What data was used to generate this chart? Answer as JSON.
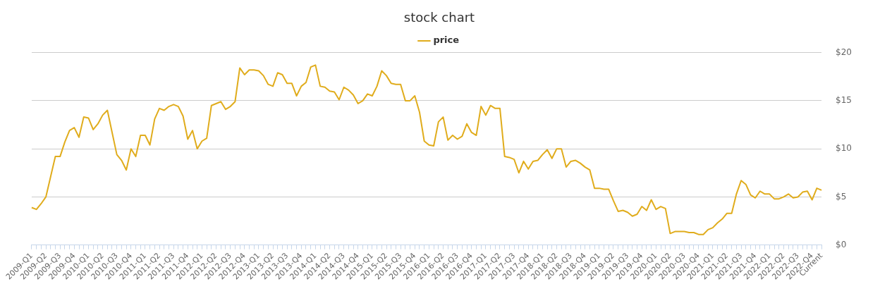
{
  "chart_data": {
    "type": "line",
    "title": "stock chart",
    "categories": [
      "2009-Q1",
      null,
      null,
      "2009-Q2",
      null,
      null,
      "2009-Q3",
      null,
      null,
      "2009-Q4",
      null,
      null,
      "2010-Q1",
      null,
      null,
      "2010-Q2",
      null,
      null,
      "2010-Q3",
      null,
      null,
      "2010-Q4",
      null,
      null,
      "2011-Q1",
      null,
      null,
      "2011-Q2",
      null,
      null,
      "2011-Q3",
      null,
      null,
      "2011-Q4",
      null,
      null,
      "2012-Q1",
      null,
      null,
      "2012-Q2",
      null,
      null,
      "2012-Q3",
      null,
      null,
      "2012-Q4",
      null,
      null,
      "2013-Q1",
      null,
      null,
      "2013-Q2",
      null,
      null,
      "2013-Q3",
      null,
      null,
      "2013-Q4",
      null,
      null,
      "2014-Q1",
      null,
      null,
      "2014-Q2",
      null,
      null,
      "2014-Q3",
      null,
      null,
      "2014-Q4",
      null,
      null,
      "2015-Q1",
      null,
      null,
      "2015-Q2",
      null,
      null,
      "2015-Q3",
      null,
      null,
      "2015-Q4",
      null,
      null,
      "2016-Q1",
      null,
      null,
      "2016-Q2",
      null,
      null,
      "2016-Q3",
      null,
      null,
      "2016-Q4",
      null,
      null,
      "2017-Q1",
      null,
      null,
      "2017-Q2",
      null,
      null,
      "2017-Q3",
      null,
      null,
      "2017-Q4",
      null,
      null,
      "2018-Q1",
      null,
      null,
      "2018-Q2",
      null,
      null,
      "2018-Q3",
      null,
      null,
      "2018-Q4",
      null,
      null,
      "2019-Q1",
      null,
      null,
      "2019-Q2",
      null,
      null,
      "2019-Q3",
      null,
      null,
      "2019-Q4",
      null,
      null,
      "2020-Q1",
      null,
      null,
      "2020-Q2",
      null,
      null,
      "2020-Q3",
      null,
      null,
      "2020-Q4",
      null,
      null,
      "2021-Q1",
      null,
      null,
      "2021-Q2",
      null,
      null,
      "2021-Q3",
      null,
      null,
      "2021-Q4",
      null,
      null,
      "2022-Q1",
      null,
      null,
      "2022-Q2",
      null,
      null,
      "2022-Q3",
      null,
      null,
      "2022-Q4",
      null,
      "Current"
    ],
    "series": [
      {
        "name": "price",
        "color": "#e0ac1c",
        "values": [
          3.9,
          3.7,
          4.3,
          5.0,
          7.1,
          9.2,
          9.2,
          10.7,
          11.9,
          12.2,
          11.2,
          13.3,
          13.2,
          12.0,
          12.6,
          13.5,
          14.0,
          11.7,
          9.4,
          8.8,
          7.8,
          10.0,
          9.2,
          11.4,
          11.4,
          10.4,
          13.1,
          14.2,
          14.0,
          14.4,
          14.6,
          14.4,
          13.4,
          11.0,
          11.9,
          10.0,
          10.8,
          11.1,
          14.5,
          14.7,
          14.9,
          14.1,
          14.4,
          14.9,
          18.4,
          17.7,
          18.2,
          18.2,
          18.1,
          17.6,
          16.7,
          16.5,
          17.9,
          17.7,
          16.8,
          16.8,
          15.5,
          16.5,
          16.9,
          18.5,
          18.7,
          16.5,
          16.4,
          16.0,
          15.9,
          15.1,
          16.4,
          16.1,
          15.6,
          14.7,
          15.0,
          15.7,
          15.5,
          16.5,
          18.1,
          17.6,
          16.8,
          16.7,
          16.7,
          15.0,
          15.0,
          15.5,
          13.8,
          10.8,
          10.4,
          10.3,
          12.8,
          13.3,
          10.9,
          11.4,
          11.0,
          11.3,
          12.6,
          11.7,
          11.4,
          14.4,
          13.5,
          14.5,
          14.2,
          14.2,
          9.2,
          9.1,
          8.9,
          7.5,
          8.7,
          7.9,
          8.7,
          8.8,
          9.4,
          9.9,
          9.0,
          10.0,
          10.0,
          8.1,
          8.7,
          8.8,
          8.5,
          8.1,
          7.8,
          5.9,
          5.9,
          5.8,
          5.8,
          4.6,
          3.5,
          3.6,
          3.4,
          3.0,
          3.2,
          4.0,
          3.6,
          4.7,
          3.7,
          4.0,
          3.8,
          1.2,
          1.4,
          1.4,
          1.4,
          1.3,
          1.3,
          1.1,
          1.1,
          1.6,
          1.8,
          2.3,
          2.7,
          3.3,
          3.3,
          5.3,
          6.7,
          6.3,
          5.2,
          4.9,
          5.6,
          5.3,
          5.3,
          4.8,
          4.8,
          5.0,
          5.3,
          4.9,
          5.0,
          5.5,
          5.6,
          4.7,
          5.9,
          5.7
        ]
      }
    ],
    "ylim": [
      0,
      20
    ],
    "yticks": [
      {
        "value": 0,
        "label": "$0"
      },
      {
        "value": 5,
        "label": "$5"
      },
      {
        "value": 10,
        "label": "$10"
      },
      {
        "value": 15,
        "label": "$15"
      },
      {
        "value": 20,
        "label": "$20"
      }
    ],
    "grid": "y",
    "legend": "top",
    "marker": "none",
    "line_style": "solid"
  }
}
